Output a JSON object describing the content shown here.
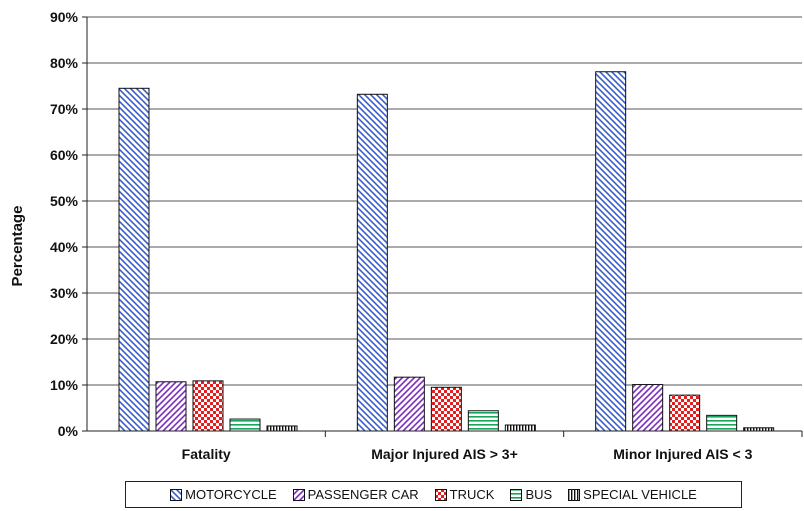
{
  "chart_data": {
    "type": "bar",
    "title": "",
    "xlabel": "",
    "ylabel": "Percentage",
    "ylim": [
      0,
      90
    ],
    "yticks": [
      "0%",
      "10%",
      "20%",
      "30%",
      "40%",
      "50%",
      "60%",
      "70%",
      "80%",
      "90%"
    ],
    "categories": [
      "Fatality",
      "Major Injured AIS > 3+",
      "Minor Injured AIS < 3"
    ],
    "grid": true,
    "legend_position": "bottom",
    "series": [
      {
        "name": "MOTORCYCLE",
        "values": [
          74.5,
          73.2,
          78.1
        ],
        "color": "#3a5fcd",
        "pattern": "diagonal-down"
      },
      {
        "name": "PASSENGER CAR",
        "values": [
          10.7,
          11.7,
          10.1
        ],
        "color": "#7b2fbe",
        "pattern": "diagonal-up"
      },
      {
        "name": "TRUCK",
        "values": [
          10.9,
          9.5,
          7.8
        ],
        "color": "#e02020",
        "pattern": "checker"
      },
      {
        "name": "BUS",
        "values": [
          2.6,
          4.4,
          3.4
        ],
        "color": "#1aa35a",
        "pattern": "horizontal"
      },
      {
        "name": "SPECIAL VEHICLE",
        "values": [
          1.1,
          1.3,
          0.7
        ],
        "color": "#111111",
        "pattern": "vertical"
      }
    ]
  }
}
